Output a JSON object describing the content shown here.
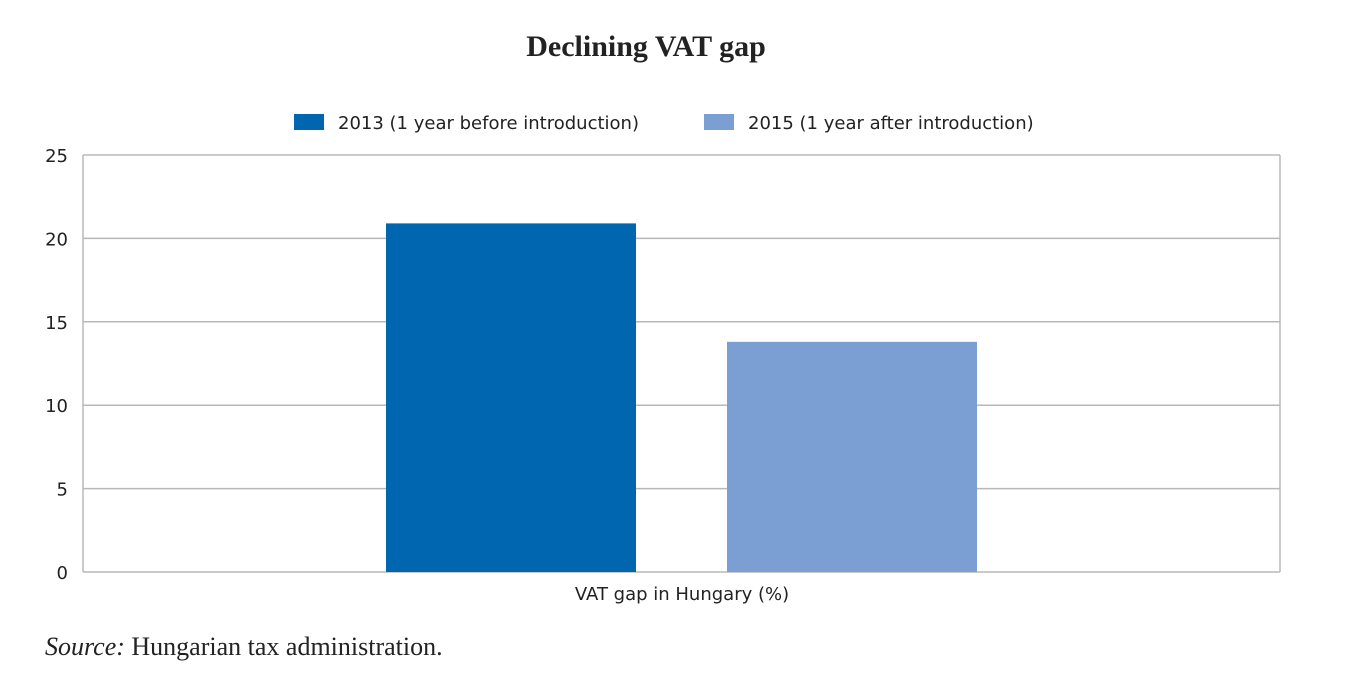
{
  "chart_data": {
    "type": "bar",
    "title": "Declining VAT gap",
    "categories": [
      "VAT gap in Hungary (%)"
    ],
    "series": [
      {
        "name": "2013 (1 year before introduction)",
        "values": [
          20.9
        ],
        "color": "#0066b0"
      },
      {
        "name": "2015 (1 year after introduction)",
        "values": [
          13.8
        ],
        "color": "#7b9fd3"
      }
    ],
    "xlabel": "VAT gap in Hungary (%)",
    "ylabel": "",
    "ylim": [
      0,
      25
    ],
    "yticks": [
      0,
      5,
      10,
      15,
      20,
      25
    ],
    "grid": true,
    "legend": "top-center"
  },
  "source": {
    "label": "Source:",
    "text": "Hungarian tax administration."
  }
}
